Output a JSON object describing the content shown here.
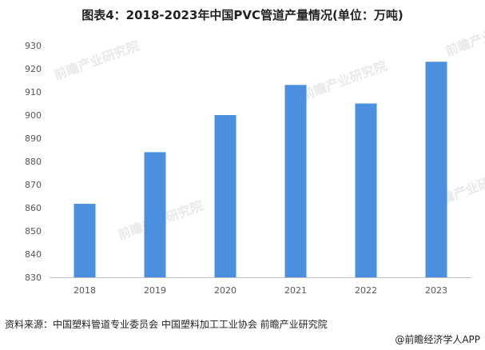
{
  "title": "图表4：2018-2023年中国PVC管道产量情况(单位：万吨)",
  "source": "资料来源：中国塑料管道专业委员会 中国塑料加工工业协会 前瞻产业研究院",
  "credit": "@前瞻经济学人APP",
  "watermark": "前瞻产业研究院",
  "colors": {
    "bar": "#4a8fe0",
    "axis": "#bfbfbf",
    "text": "#555555"
  },
  "chart_data": {
    "type": "bar",
    "categories": [
      "2018",
      "2019",
      "2020",
      "2021",
      "2022",
      "2023"
    ],
    "values": [
      861.7,
      884,
      900,
      913,
      905,
      923
    ],
    "ylim": [
      830,
      930
    ],
    "yticks": [
      830,
      840,
      850,
      860,
      870,
      880,
      890,
      900,
      910,
      920,
      930
    ],
    "grid": false,
    "xlabel": "",
    "ylabel": ""
  }
}
